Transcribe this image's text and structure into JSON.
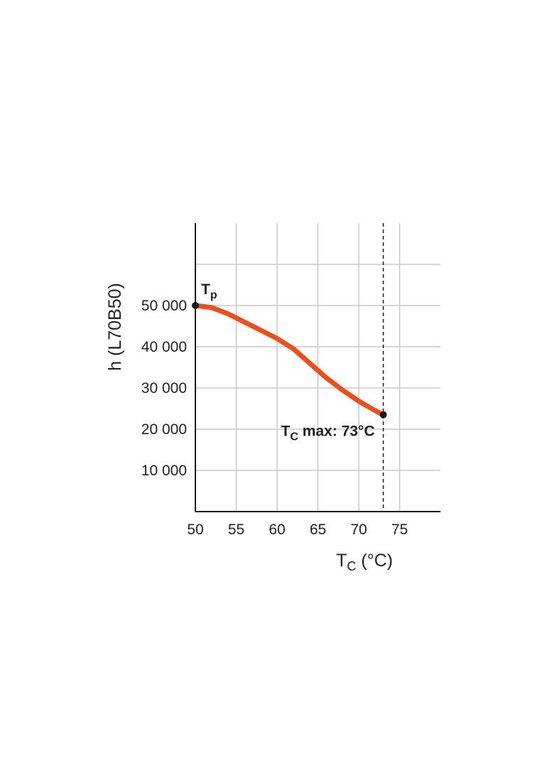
{
  "chart_data": {
    "type": "line",
    "title": "",
    "xlabel": {
      "main": "T",
      "sub": "C",
      "rest": " (°C)"
    },
    "ylabel": "h (L70B50)",
    "xlim": [
      50,
      80
    ],
    "ylim": [
      0,
      70000
    ],
    "x_ticks": [
      50,
      55,
      60,
      65,
      70,
      75
    ],
    "x_tick_labels": [
      "50",
      "55",
      "60",
      "65",
      "70",
      "75"
    ],
    "y_ticks": [
      10000,
      20000,
      30000,
      40000,
      50000
    ],
    "y_tick_labels": [
      "10 000",
      "20 000",
      "30 000",
      "40 000",
      "50 000"
    ],
    "grid": true,
    "series": [
      {
        "x": [
          50,
          52,
          54,
          56,
          58,
          60,
          62,
          64,
          66,
          68,
          70,
          72,
          73
        ],
        "y": [
          50000,
          49500,
          48000,
          46000,
          44000,
          42000,
          39500,
          36000,
          32500,
          29500,
          26800,
          24500,
          23500
        ],
        "color": "#e8501e"
      }
    ],
    "annotations": [
      {
        "type": "point_label",
        "x": 50,
        "y": 50000,
        "main": "T",
        "sub": "p",
        "rest": ""
      },
      {
        "type": "point_label",
        "x": 73,
        "y": 23500,
        "main": "T",
        "sub": "C",
        "rest": " max: 73°C"
      }
    ],
    "reference_lines": [
      {
        "orientation": "vertical",
        "x": 73,
        "style": "dashed"
      }
    ],
    "colors": {
      "line": "#e8501e",
      "grid": "#c8c8c8",
      "axis": "#1a1a1a",
      "text": "#222222",
      "marker": "#1a1a1a"
    }
  }
}
